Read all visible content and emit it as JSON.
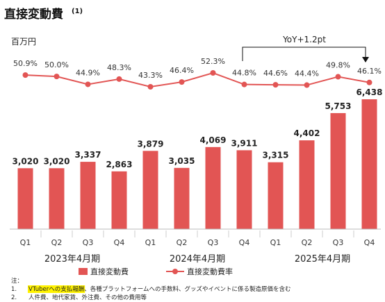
{
  "title": "直接変動費",
  "title_sup": "(1)",
  "unit": "百万円",
  "yoy_label": "YoY+1.2pt",
  "colors": {
    "bar": "#e25554",
    "line": "#e25554",
    "yoy_arrow": "#111111"
  },
  "chart_data": {
    "type": "bar",
    "categories": [
      "Q1",
      "Q2",
      "Q3",
      "Q4",
      "Q1",
      "Q2",
      "Q3",
      "Q4",
      "Q1",
      "Q2",
      "Q3",
      "Q4"
    ],
    "groups": [
      {
        "label": "2023年4月期",
        "start": 0,
        "end": 3
      },
      {
        "label": "2024年4月期",
        "start": 4,
        "end": 7
      },
      {
        "label": "2025年4月期",
        "start": 8,
        "end": 11
      }
    ],
    "series": [
      {
        "name": "直接変動費",
        "type": "bar",
        "values": [
          3020,
          3020,
          3337,
          2863,
          3879,
          3035,
          4069,
          3911,
          3315,
          4402,
          5753,
          6438
        ],
        "labels": [
          "3,020",
          "3,020",
          "3,337",
          "2,863",
          "3,879",
          "3,035",
          "4,069",
          "3,911",
          "3,315",
          "4,402",
          "5,753",
          "6,438"
        ]
      },
      {
        "name": "直接変動費率",
        "type": "line",
        "values": [
          50.9,
          50.0,
          44.9,
          48.3,
          43.3,
          46.4,
          52.3,
          44.8,
          44.6,
          44.4,
          49.8,
          46.1
        ],
        "labels": [
          "50.9%",
          "50.0%",
          "44.9%",
          "48.3%",
          "43.3%",
          "46.4%",
          "52.3%",
          "44.8%",
          "44.6%",
          "44.4%",
          "49.8%",
          "46.1%"
        ]
      }
    ],
    "grid": false,
    "legend_position": "bottom"
  },
  "notes": {
    "heading": "注：",
    "items": [
      {
        "num": "1.",
        "highlight": "VTuberへの支払報酬",
        "text": "、各種プラットフォームへの手数料、グッズやイベントに係る製造原価を含む"
      },
      {
        "num": "2.",
        "highlight": "",
        "text": "人件費、地代家賃、外注費、その他の費用等"
      }
    ]
  }
}
